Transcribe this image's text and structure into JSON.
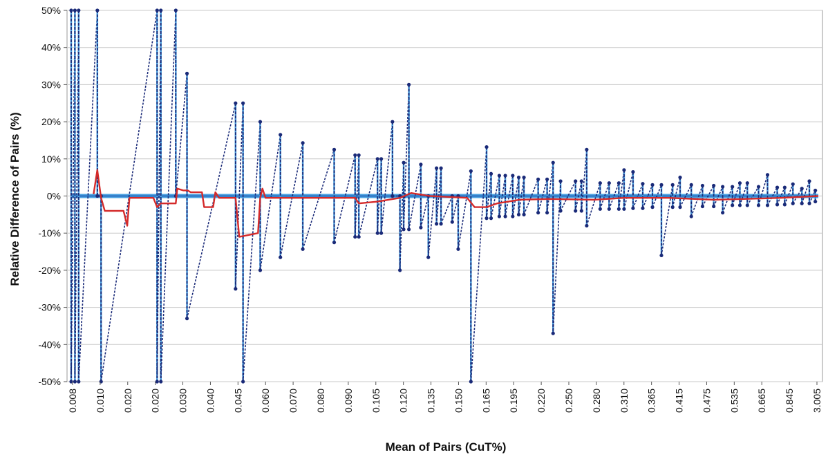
{
  "chart_data": {
    "type": "line",
    "title": "",
    "xlabel": "Mean of Pairs (CuT%)",
    "ylabel": "Relative Difference of Pairs (%)",
    "ylim": [
      -50,
      50
    ],
    "y_ticks": [
      "50%",
      "40%",
      "30%",
      "20%",
      "10%",
      "0%",
      "-10%",
      "-20%",
      "-30%",
      "-40%",
      "-50%"
    ],
    "x_categories": [
      "0.008",
      "0.010",
      "0.020",
      "0.020",
      "0.030",
      "0.040",
      "0.045",
      "0.060",
      "0.070",
      "0.080",
      "0.090",
      "0.105",
      "0.120",
      "0.135",
      "0.150",
      "0.165",
      "0.195",
      "0.220",
      "0.250",
      "0.280",
      "0.310",
      "0.365",
      "0.415",
      "0.475",
      "0.535",
      "0.665",
      "0.845",
      "3.005"
    ],
    "grid": true,
    "legend": "none",
    "colors": {
      "pairs": "#1a2a78",
      "pairs_fill": "#4aa0e0",
      "trend": "#d42a2a",
      "zero": "#2a6fc0",
      "grid": "#c8c8c8"
    },
    "series": [
      {
        "style": "dashed-markers",
        "pairs": [
          [
            0.0,
            50,
            -50
          ],
          [
            0.005,
            50,
            -50
          ],
          [
            0.01,
            50,
            -50
          ],
          [
            0.035,
            50,
            0
          ],
          [
            0.04,
            0,
            -50
          ],
          [
            0.115,
            50,
            -50
          ],
          [
            0.12,
            50,
            -50
          ],
          [
            0.14,
            50,
            0
          ],
          [
            0.155,
            33,
            -33
          ],
          [
            0.22,
            25,
            -25
          ],
          [
            0.23,
            25,
            -50
          ],
          [
            0.253,
            20,
            -20
          ],
          [
            0.28,
            16.5,
            -16.5
          ],
          [
            0.31,
            14.3,
            -14.3
          ],
          [
            0.352,
            12.5,
            -12.5
          ],
          [
            0.38,
            11,
            -11
          ],
          [
            0.385,
            11,
            -11
          ],
          [
            0.41,
            10,
            -10
          ],
          [
            0.415,
            10,
            -10
          ],
          [
            0.43,
            20,
            0
          ],
          [
            0.44,
            0,
            -20
          ],
          [
            0.445,
            9,
            -9
          ],
          [
            0.452,
            30,
            -9
          ],
          [
            0.468,
            8.5,
            -8.5
          ],
          [
            0.478,
            0,
            -16.5
          ],
          [
            0.489,
            7.5,
            -7.5
          ],
          [
            0.495,
            7.5,
            -7.5
          ],
          [
            0.51,
            0,
            -7
          ],
          [
            0.518,
            0,
            -14.3
          ],
          [
            0.535,
            6.7,
            -50
          ],
          [
            0.556,
            13.2,
            -6
          ],
          [
            0.562,
            6,
            -6
          ],
          [
            0.573,
            5.5,
            -5.5
          ],
          [
            0.581,
            5.5,
            -5.5
          ],
          [
            0.591,
            5.5,
            -5.5
          ],
          [
            0.599,
            5,
            -5
          ],
          [
            0.606,
            5,
            -5
          ],
          [
            0.625,
            4.5,
            -4.5
          ],
          [
            0.637,
            4.5,
            -4.5
          ],
          [
            0.645,
            9,
            -37
          ],
          [
            0.655,
            4,
            -4
          ],
          [
            0.675,
            4,
            -4
          ],
          [
            0.683,
            4,
            -4
          ],
          [
            0.69,
            12.5,
            -8
          ],
          [
            0.708,
            3.5,
            -3.5
          ],
          [
            0.72,
            3.5,
            -3.5
          ],
          [
            0.733,
            3.5,
            -3.5
          ],
          [
            0.74,
            7,
            -3.5
          ],
          [
            0.752,
            6.5,
            -3.3
          ],
          [
            0.765,
            3.3,
            -3.3
          ],
          [
            0.778,
            3,
            -3
          ],
          [
            0.79,
            3,
            -16
          ],
          [
            0.805,
            3,
            -3
          ],
          [
            0.815,
            5,
            -3
          ],
          [
            0.83,
            3,
            -5.5
          ],
          [
            0.845,
            2.8,
            -2.8
          ],
          [
            0.86,
            2.8,
            -2.8
          ],
          [
            0.872,
            2.5,
            -4.5
          ],
          [
            0.885,
            2.5,
            -2.5
          ],
          [
            0.895,
            3.5,
            -2.5
          ],
          [
            0.905,
            3.5,
            -2.5
          ],
          [
            0.92,
            2.5,
            -2.5
          ],
          [
            0.932,
            5.7,
            -2.5
          ],
          [
            0.945,
            2.3,
            -2.3
          ],
          [
            0.955,
            2.3,
            -2.3
          ],
          [
            0.966,
            3.2,
            -2
          ],
          [
            0.978,
            2,
            -2
          ],
          [
            0.988,
            4,
            -2
          ],
          [
            0.996,
            1.5,
            -1.5
          ]
        ]
      },
      {
        "style": "solid-line",
        "points": [
          [
            0.03,
            0.5
          ],
          [
            0.035,
            7
          ],
          [
            0.04,
            -0.5
          ],
          [
            0.045,
            -4
          ],
          [
            0.07,
            -4
          ],
          [
            0.075,
            -8
          ],
          [
            0.078,
            -0.5
          ],
          [
            0.11,
            -0.5
          ],
          [
            0.115,
            -3
          ],
          [
            0.12,
            -2
          ],
          [
            0.14,
            -2
          ],
          [
            0.142,
            2
          ],
          [
            0.15,
            1.5
          ],
          [
            0.156,
            1.5
          ],
          [
            0.16,
            1
          ],
          [
            0.175,
            1
          ],
          [
            0.178,
            -3
          ],
          [
            0.19,
            -3
          ],
          [
            0.193,
            1
          ],
          [
            0.198,
            -0.5
          ],
          [
            0.22,
            -0.5
          ],
          [
            0.225,
            -11
          ],
          [
            0.25,
            -10
          ],
          [
            0.253,
            -0.5
          ],
          [
            0.256,
            2
          ],
          [
            0.26,
            -0.5
          ],
          [
            0.38,
            -0.5
          ],
          [
            0.385,
            -2
          ],
          [
            0.41,
            -1.5
          ],
          [
            0.44,
            -0.5
          ],
          [
            0.455,
            0.8
          ],
          [
            0.48,
            0
          ],
          [
            0.53,
            -0.5
          ],
          [
            0.54,
            -3
          ],
          [
            0.556,
            -3
          ],
          [
            0.57,
            -2
          ],
          [
            0.6,
            -1
          ],
          [
            0.64,
            -0.8
          ],
          [
            0.7,
            -1
          ],
          [
            0.74,
            -0.5
          ],
          [
            0.8,
            -0.5
          ],
          [
            0.86,
            -1
          ],
          [
            0.9,
            -0.8
          ],
          [
            0.95,
            -0.5
          ],
          [
            1.0,
            0
          ]
        ]
      },
      {
        "style": "zero-band",
        "points": [
          [
            0,
            0
          ],
          [
            1,
            0
          ]
        ]
      }
    ]
  }
}
